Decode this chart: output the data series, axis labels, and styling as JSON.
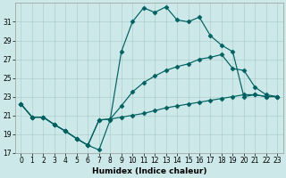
{
  "xlabel": "Humidex (Indice chaleur)",
  "bg_color": "#cce8e8",
  "line_color": "#006060",
  "xlim": [
    -0.5,
    23.5
  ],
  "ylim": [
    17,
    33
  ],
  "yticks": [
    17,
    19,
    21,
    23,
    25,
    27,
    29,
    31
  ],
  "xticks": [
    0,
    1,
    2,
    3,
    4,
    5,
    6,
    7,
    8,
    9,
    10,
    11,
    12,
    13,
    14,
    15,
    16,
    17,
    18,
    19,
    20,
    21,
    22,
    23
  ],
  "line1_x": [
    0,
    1,
    2,
    3,
    4,
    5,
    6,
    7,
    8,
    9,
    10,
    11,
    12,
    13,
    14,
    15,
    16,
    17,
    18,
    19,
    20,
    21,
    22,
    23
  ],
  "line1_y": [
    22.2,
    20.8,
    20.8,
    20.0,
    19.3,
    18.5,
    17.8,
    17.3,
    20.5,
    27.8,
    31.0,
    32.5,
    32.0,
    32.6,
    31.2,
    31.0,
    31.5,
    29.5,
    28.5,
    27.8,
    23.0,
    23.2,
    23.0,
    23.0
  ],
  "line2_x": [
    0,
    1,
    2,
    3,
    4,
    5,
    6,
    7,
    8,
    9,
    10,
    11,
    12,
    13,
    14,
    15,
    16,
    17,
    18,
    19,
    20,
    21,
    22,
    23
  ],
  "line2_y": [
    22.2,
    20.8,
    20.8,
    20.0,
    19.3,
    18.5,
    17.8,
    20.5,
    20.6,
    22.0,
    23.5,
    24.5,
    25.2,
    25.8,
    26.2,
    26.5,
    27.0,
    27.2,
    27.5,
    26.0,
    25.8,
    24.0,
    23.2,
    23.0
  ],
  "line3_x": [
    0,
    1,
    2,
    3,
    4,
    5,
    6,
    7,
    8,
    9,
    10,
    11,
    12,
    13,
    14,
    15,
    16,
    17,
    18,
    19,
    20,
    21,
    22,
    23
  ],
  "line3_y": [
    22.2,
    20.8,
    20.8,
    20.0,
    19.3,
    18.5,
    17.8,
    20.5,
    20.6,
    20.8,
    21.0,
    21.2,
    21.5,
    21.8,
    22.0,
    22.2,
    22.4,
    22.6,
    22.8,
    23.0,
    23.2,
    23.2,
    23.0,
    23.0
  ]
}
